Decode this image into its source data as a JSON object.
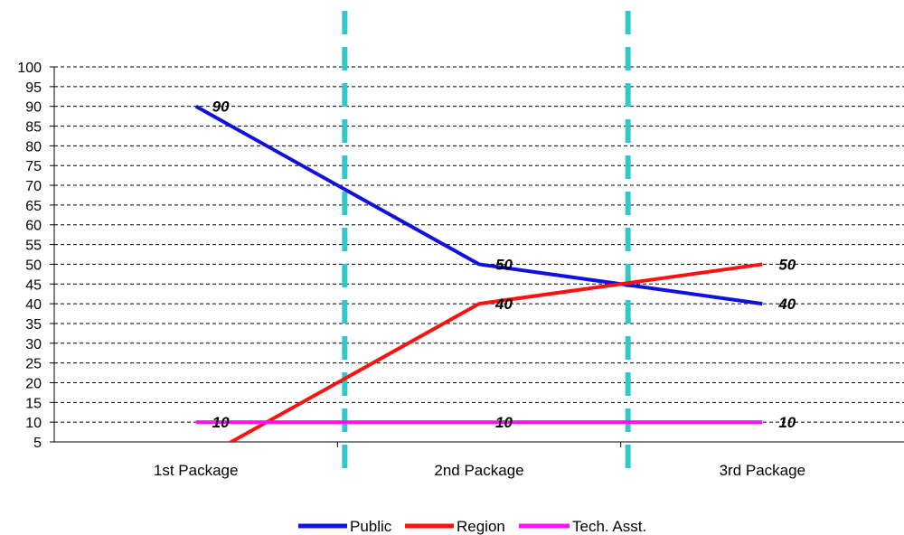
{
  "chart_data": {
    "type": "line",
    "categories": [
      "1st Package",
      "2nd Package",
      "3rd Package"
    ],
    "series": [
      {
        "name": "Public",
        "values": [
          90,
          50,
          40
        ],
        "color": "#1010e0"
      },
      {
        "name": "Region",
        "values": [
          0,
          40,
          50
        ],
        "color": "#ff1010"
      },
      {
        "name": "Tech. Asst.",
        "values": [
          10,
          10,
          10
        ],
        "color": "#ff10ff"
      }
    ],
    "data_labels": [
      {
        "series": "Public",
        "category": "1st Package",
        "text": "90"
      },
      {
        "series": "Public",
        "category": "2nd Package",
        "text": "50"
      },
      {
        "series": "Public",
        "category": "3rd Package",
        "text": "40"
      },
      {
        "series": "Region",
        "category": "2nd Package",
        "text": "40"
      },
      {
        "series": "Region",
        "category": "3rd Package",
        "text": "50"
      },
      {
        "series": "Tech. Asst.",
        "category": "1st Package",
        "text": "10"
      },
      {
        "series": "Tech. Asst.",
        "category": "2nd Package",
        "text": "10"
      },
      {
        "series": "Tech. Asst.",
        "category": "3rd Package",
        "text": "10"
      }
    ],
    "yticks": [
      "5",
      "10",
      "15",
      "20",
      "25",
      "30",
      "35",
      "40",
      "45",
      "50",
      "55",
      "60",
      "65",
      "70",
      "75",
      "80",
      "85",
      "90",
      "95",
      "100"
    ],
    "ylim": [
      5,
      100
    ],
    "grid": true,
    "grid_style": "dashed",
    "separator_color": "#30c8c8",
    "legend_position": "bottom"
  }
}
